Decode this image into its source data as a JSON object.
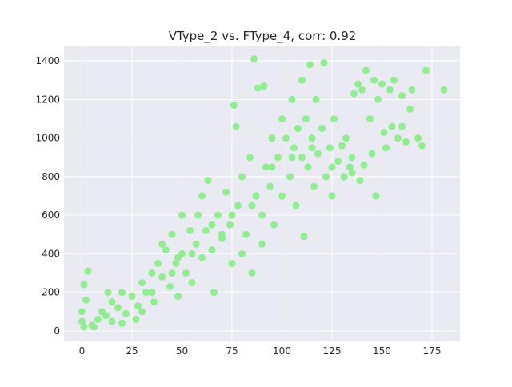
{
  "chart_data": {
    "type": "scatter",
    "title": "VType_2 vs. FType_4, corr: 0.92",
    "color": "#90ee90",
    "grid": true,
    "xlim": [
      -9,
      189
    ],
    "xticks": [
      0,
      25,
      50,
      75,
      100,
      125,
      150,
      175
    ],
    "ylim": [
      -54,
      1475
    ],
    "yticks": [
      0,
      200,
      400,
      600,
      800,
      1000,
      1200,
      1400
    ],
    "x": [
      0,
      0,
      1,
      3,
      2,
      1,
      5,
      8,
      10,
      12,
      15,
      18,
      20,
      22,
      25,
      28,
      30,
      32,
      35,
      36,
      38,
      40,
      42,
      44,
      45,
      47,
      48,
      50,
      52,
      54,
      55,
      57,
      58,
      60,
      62,
      63,
      65,
      66,
      68,
      70,
      72,
      74,
      75,
      76,
      77,
      78,
      80,
      82,
      84,
      85,
      86,
      87,
      88,
      90,
      91,
      92,
      94,
      95,
      96,
      98,
      100,
      100,
      102,
      104,
      105,
      106,
      107,
      108,
      110,
      110,
      111,
      112,
      113,
      114,
      115,
      116,
      117,
      118,
      120,
      121,
      122,
      124,
      125,
      126,
      128,
      130,
      131,
      132,
      134,
      135,
      136,
      138,
      139,
      140,
      141,
      142,
      144,
      145,
      146,
      147,
      148,
      150,
      151,
      152,
      154,
      155,
      156,
      158,
      160,
      160,
      162,
      164,
      165,
      168,
      170,
      172,
      181,
      20,
      30,
      35,
      45,
      55,
      65,
      75,
      85,
      95,
      105,
      115,
      125,
      135,
      40,
      50,
      60,
      70,
      80,
      90,
      27,
      15,
      6,
      13,
      48
    ],
    "y": [
      50,
      100,
      240,
      310,
      160,
      20,
      30,
      60,
      100,
      80,
      150,
      120,
      200,
      90,
      180,
      130,
      250,
      200,
      300,
      150,
      350,
      280,
      420,
      230,
      500,
      350,
      180,
      400,
      300,
      520,
      250,
      450,
      600,
      380,
      520,
      780,
      420,
      200,
      600,
      480,
      720,
      550,
      350,
      1170,
      1060,
      650,
      800,
      500,
      900,
      300,
      1410,
      700,
      1260,
      600,
      1270,
      850,
      750,
      1000,
      550,
      900,
      1100,
      700,
      1000,
      800,
      1200,
      950,
      650,
      1050,
      900,
      1300,
      490,
      1100,
      850,
      1380,
      1000,
      750,
      1200,
      920,
      1050,
      1390,
      800,
      950,
      700,
      1100,
      880,
      960,
      800,
      1000,
      850,
      900,
      1230,
      1280,
      780,
      1250,
      860,
      1350,
      1100,
      920,
      1300,
      700,
      1200,
      1280,
      1030,
      950,
      1250,
      1060,
      1300,
      1000,
      1220,
      1060,
      980,
      1150,
      1250,
      1000,
      960,
      1350,
      1250,
      40,
      100,
      200,
      300,
      400,
      550,
      600,
      650,
      850,
      900,
      950,
      850,
      820,
      450,
      600,
      700,
      500,
      400,
      450,
      60,
      50,
      20,
      200,
      380
    ]
  }
}
